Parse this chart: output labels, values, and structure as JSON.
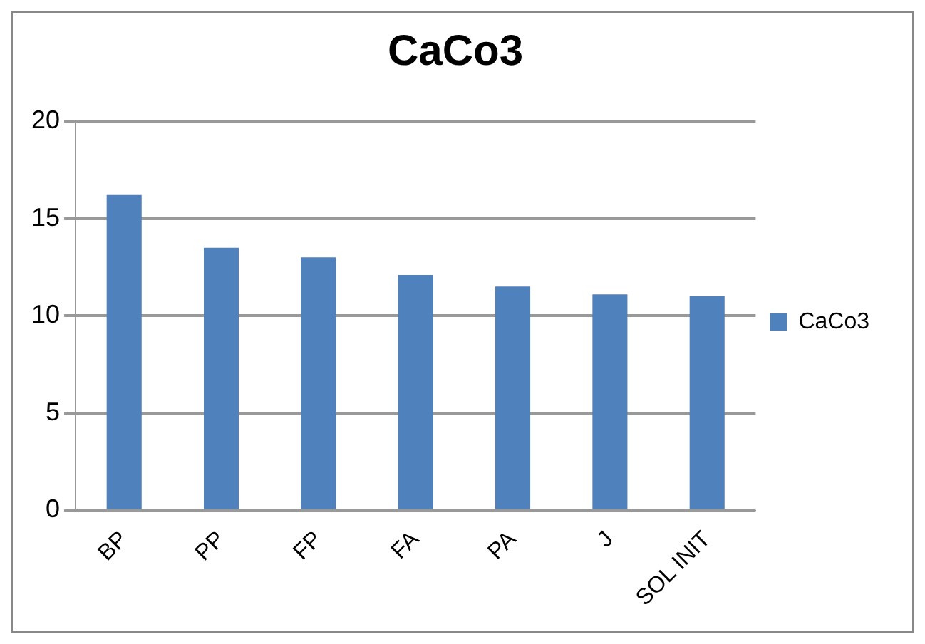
{
  "chart_data": {
    "type": "bar",
    "title": "CaCo3",
    "categories": [
      "BP",
      "PP",
      "FP",
      "FA",
      "PA",
      "J",
      "SOL INIT"
    ],
    "series": [
      {
        "name": "CaCo3",
        "color": "#4f81bd",
        "values": [
          16.2,
          13.5,
          13.0,
          12.1,
          11.5,
          11.1,
          11.0
        ]
      }
    ],
    "ylim": [
      0,
      20
    ],
    "yticks": [
      0,
      5,
      10,
      15,
      20
    ],
    "grid": "y",
    "legend": "right"
  }
}
